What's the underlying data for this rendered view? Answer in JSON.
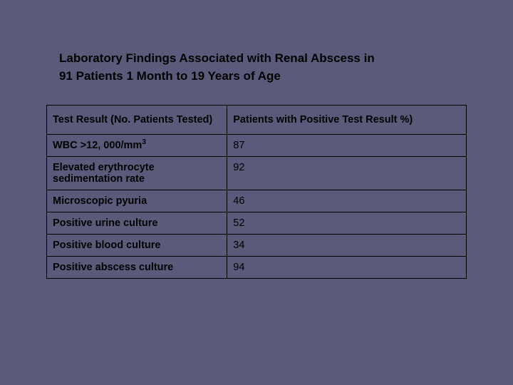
{
  "slide": {
    "background_color": "#5a5a7a",
    "title_line1": "Laboratory Findings Associated with Renal Abscess  in",
    "title_line2": "91 Patients 1 Month to 19 Years of Age",
    "title_fontsize": 17,
    "title_fontweight": "bold",
    "title_color": "#000000"
  },
  "table": {
    "type": "table",
    "border_color": "#000000",
    "cell_font_color": "#000000",
    "header_fontsize": 14.5,
    "body_fontsize": 14.5,
    "column_widths_pct": [
      43,
      57
    ],
    "columns": [
      "Test Result (No. Patients Tested)",
      " Patients with Positive Test Result %)"
    ],
    "rows": [
      {
        "test_prefix": "WBC >12, 000/mm",
        "test_sup": "3",
        "value": "87"
      },
      {
        "test": "Elevated erythrocyte sedimentation rate",
        "value": "92"
      },
      {
        "test": "Microscopic pyuria",
        "value": "46"
      },
      {
        "test": "Positive urine culture",
        "value": "52"
      },
      {
        "test": "Positive blood culture",
        "value": "34"
      },
      {
        "test": "Positive abscess culture",
        "value": "94"
      }
    ]
  }
}
